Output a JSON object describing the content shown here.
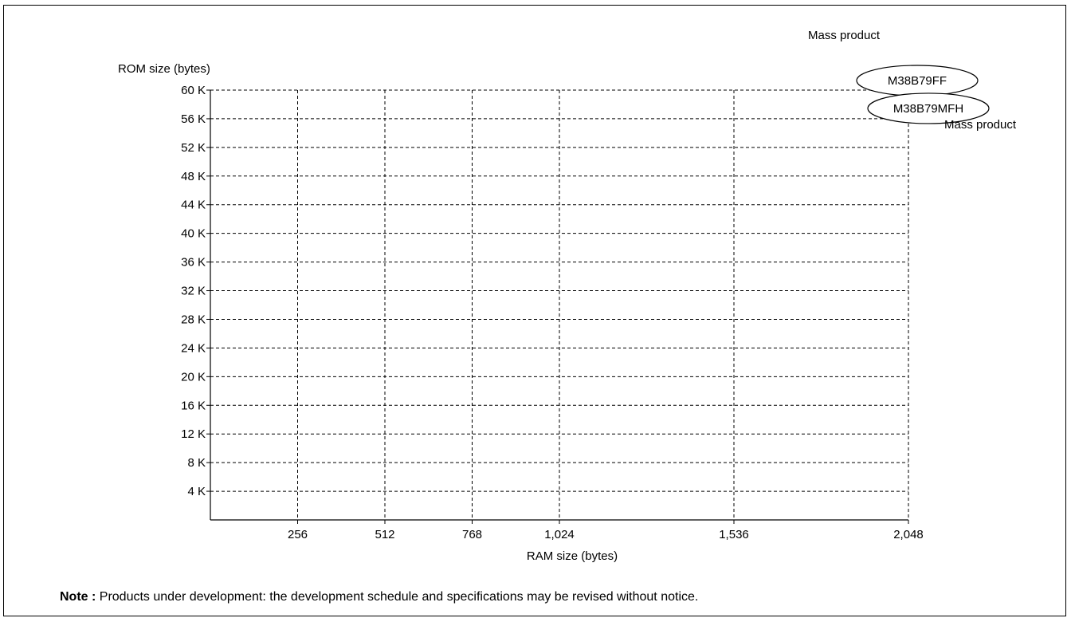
{
  "chart_data": {
    "type": "scatter",
    "ylabel": "ROM size (bytes)",
    "xlabel": "RAM size (bytes)",
    "x_ticks": [
      256,
      512,
      768,
      1024,
      1536,
      2048
    ],
    "x_tick_labels": [
      "256",
      "512",
      "768",
      "1,024",
      "1,536",
      "2,048"
    ],
    "xlim": [
      0,
      2048
    ],
    "y_ticks": [
      4,
      8,
      12,
      16,
      20,
      24,
      28,
      32,
      36,
      40,
      44,
      48,
      52,
      56,
      60
    ],
    "y_tick_labels": [
      "4 K",
      "8 K",
      "12 K",
      "16 K",
      "20 K",
      "24 K",
      "28 K",
      "32 K",
      "36 K",
      "40 K",
      "44 K",
      "48 K",
      "52 K",
      "56 K",
      "60 K"
    ],
    "ylim": [
      0,
      60
    ],
    "grid": true,
    "points": [
      {
        "name": "M38B79FF",
        "x": 2048,
        "y": 60,
        "status": "Mass product"
      },
      {
        "name": "M38B79MFH",
        "x": 2048,
        "y": 56,
        "status": "Mass product"
      }
    ]
  },
  "note": {
    "label": "Note :",
    "text": "Products under development: the development schedule and specifications may be revised without notice."
  }
}
